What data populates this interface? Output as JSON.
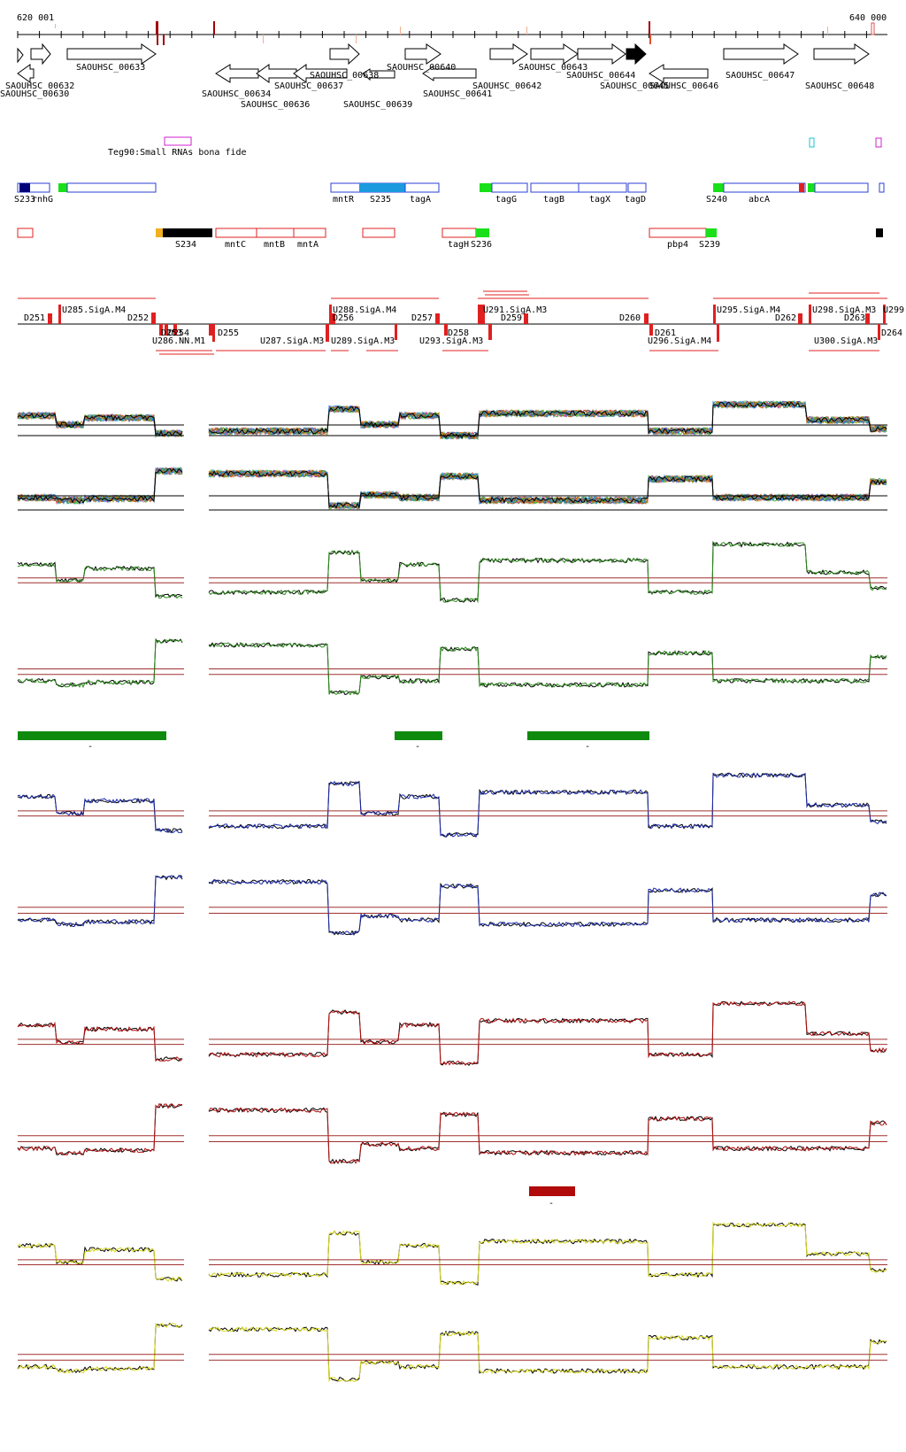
{
  "ruler": {
    "start_label": "620 001",
    "end_label": "640 000"
  },
  "genes_top": [
    {
      "label": "SAOUHSC_00633"
    },
    {
      "label": "SAOUHSC_00638"
    },
    {
      "label": "SAOUHSC_00640"
    },
    {
      "label": "SAOUHSC_00643"
    },
    {
      "label": "SAOUHSC_00644"
    },
    {
      "label": "SAOUHSC_00647"
    },
    {
      "label": "SAOUHSC_00648"
    },
    {
      "label": "SAOUHSC_00632"
    },
    {
      "label": "SAOUHSC_00630"
    },
    {
      "label": "SAOUHSC_00634"
    },
    {
      "label": "SAOUHSC_00636"
    },
    {
      "label": "SAOUHSC_00637"
    },
    {
      "label": "SAOUHSC_00639"
    },
    {
      "label": "SAOUHSC_00641"
    },
    {
      "label": "SAOUHSC_00642"
    },
    {
      "label": "SAOUHSC_00645"
    },
    {
      "label": "SAOUHSC_00646"
    }
  ],
  "small_rna_label": "Teg90:Small RNAs bona fide",
  "operons_forward": [
    "S233",
    "rnhG",
    "mntR",
    "S235",
    "tagA",
    "tagG",
    "tagB",
    "tagX",
    "tagD",
    "S240",
    "abcA"
  ],
  "operons_reverse": [
    "S234",
    "mntC",
    "mntB",
    "mntA",
    "tagH",
    "S236",
    "pbp4",
    "S239"
  ],
  "promoters_upper": [
    "D251",
    "U285.SigA.M4",
    "D252",
    "U288.SigA.M4",
    "D256",
    "D257",
    "U291.SigA.M3",
    "D259",
    "D260",
    "U295.SigA.M4",
    "D262",
    "U298.SigA.M3",
    "D263",
    "U299"
  ],
  "promoters_lower": [
    "D253",
    "D254",
    "U286.NN.M1",
    "D255",
    "U287.SigA.M3",
    "U289.SigA.M3",
    "D258",
    "U293.SigA.M3",
    "D261",
    "U296.SigA.M4",
    "U300.SigA.M3",
    "D264"
  ],
  "segment_minus": "-",
  "colors": {
    "gene_outline": "#000000",
    "forward_box": "#2b3fd6",
    "reverse_box": "#e02020",
    "green_mark": "#19e019",
    "blue_fill": "#1b9ae0",
    "navy": "#00007a",
    "track_green": "#2a8a1a",
    "track_blue": "#1a2aa8",
    "track_red": "#b01010",
    "track_yellow": "#d8d820",
    "band_green": "#0e8a0e",
    "band_red": "#b00a0a",
    "threshold": "#a03030"
  }
}
